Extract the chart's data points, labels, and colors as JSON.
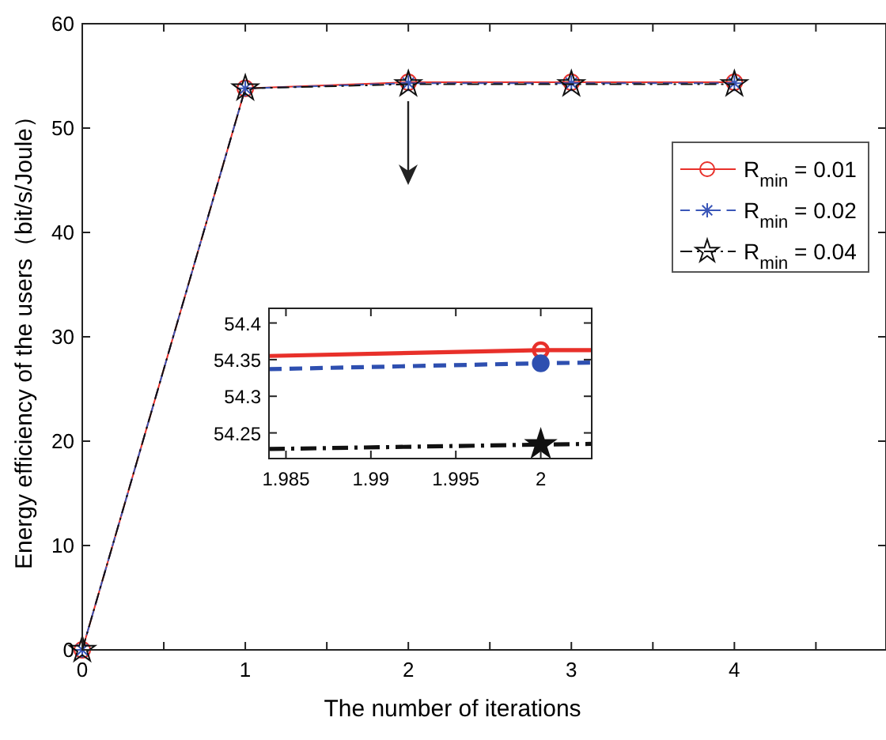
{
  "chart_data": [
    {
      "type": "line",
      "xlabel": "The number of iterations",
      "ylabel": "Energy efficiency of the users（bit/s/Joule）",
      "x": [
        0,
        1,
        2,
        3,
        4
      ],
      "xlim": [
        0,
        4.93
      ],
      "ylim": [
        0,
        60
      ],
      "xticks": [
        0,
        {
          "value": 0.5,
          "label": null
        },
        1,
        {
          "value": 1.5,
          "label": null
        },
        2,
        {
          "value": 2.5,
          "label": null
        },
        3,
        {
          "value": 3.5,
          "label": null
        },
        4,
        {
          "value": 4.5,
          "label": null
        }
      ],
      "yticks": [
        0,
        10,
        20,
        30,
        40,
        50,
        60
      ],
      "legend": "right",
      "grid": false,
      "series": [
        {
          "name": "R$_{min}$ = 0.01",
          "color": "#e8302a",
          "marker": "circle",
          "line_style": "solid",
          "values": [
            0,
            53.8,
            54.4,
            54.4,
            54.4
          ]
        },
        {
          "name": "R$_{min}$ = 0.02",
          "color": "#3a56b8",
          "marker": "cross",
          "line_style": "dashed",
          "values": [
            0,
            53.8,
            54.3,
            54.3,
            54.3
          ]
        },
        {
          "name": "R$_{min}$ = 0.04",
          "color": "#111111",
          "marker": "star",
          "line_style": "dashdot",
          "values": [
            0,
            53.8,
            54.2,
            54.2,
            54.2
          ]
        }
      ]
    },
    {
      "type": "line",
      "x": [
        1.984,
        2,
        2.003
      ],
      "xlim": [
        1.984,
        2.003
      ],
      "ylim": [
        54.215,
        54.42
      ],
      "xticks": [
        1.985,
        1.99,
        1.995,
        2
      ],
      "yticks": [
        54.25,
        54.3,
        54.35,
        54.4
      ],
      "grid": false,
      "series": [
        {
          "color": "#e8302a",
          "line_style": "solid",
          "values": [
            54.355,
            54.363,
            54.363
          ]
        },
        {
          "color": "#2e4fb0",
          "line_style": "dashed",
          "values": [
            54.337,
            54.345,
            54.346
          ]
        },
        {
          "color": "#111111",
          "line_style": "dashdot",
          "values": [
            54.228,
            54.234,
            54.235
          ]
        },
        {
          "type": "scatter",
          "color": "#e8302a",
          "marker": "circle",
          "values": [
            null,
            54.363,
            null
          ]
        },
        {
          "type": "scatter",
          "color": "#2e4fb0",
          "marker": "circle",
          "values": [
            null,
            54.345,
            null
          ]
        },
        {
          "type": "scatter",
          "color": "#111111",
          "marker": "star",
          "values": [
            null,
            54.234,
            null
          ]
        }
      ]
    }
  ]
}
